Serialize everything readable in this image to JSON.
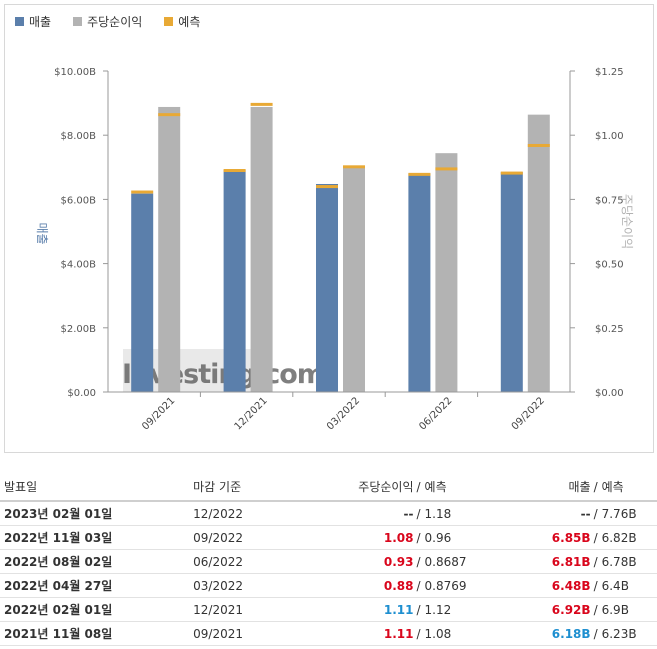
{
  "legend": [
    {
      "label": "매출",
      "color": "#5b7fab"
    },
    {
      "label": "주당순이익",
      "color": "#b3b3b3"
    },
    {
      "label": "예측",
      "color": "#e8a935"
    }
  ],
  "chart_data": {
    "type": "bar",
    "categories": [
      "09/2021",
      "12/2021",
      "03/2022",
      "06/2022",
      "09/2022"
    ],
    "series": [
      {
        "name": "매출",
        "axis": "left",
        "values": [
          6.18,
          6.92,
          6.48,
          6.81,
          6.85
        ],
        "forecast": [
          6.23,
          6.9,
          6.4,
          6.78,
          6.82
        ]
      },
      {
        "name": "주당순이익",
        "axis": "right",
        "values": [
          1.11,
          1.11,
          0.88,
          0.93,
          1.08
        ],
        "forecast": [
          1.08,
          1.12,
          0.8769,
          0.8687,
          0.96
        ]
      }
    ],
    "ylabel": "매출",
    "y2label": "주당순이익",
    "ylim": [
      0,
      10
    ],
    "y2lim": [
      0,
      1.25
    ],
    "yticks": [
      "$0.00",
      "$2.00B",
      "$4.00B",
      "$6.00B",
      "$8.00B",
      "$10.00B"
    ],
    "y2ticks": [
      "$0.00",
      "$0.25",
      "$0.50",
      "$0.75",
      "$1.00",
      "$1.25"
    ],
    "watermark": "Investing.com"
  },
  "table": {
    "headers": {
      "date": "발표일",
      "period": "마감 기준",
      "eps": "주당순이익",
      "eps_forecast": "예측",
      "revenue": "매출",
      "revenue_forecast": "예측",
      "slash": "/"
    },
    "rows": [
      {
        "date": "2023년 02월 01일",
        "period": "12/2022",
        "eps": "--",
        "eps_class": "neu",
        "eps_forecast": "1.18",
        "revenue": "--",
        "revenue_class": "neu",
        "revenue_forecast": "7.76B"
      },
      {
        "date": "2022년 11월 03일",
        "period": "09/2022",
        "eps": "1.08",
        "eps_class": "neg",
        "eps_forecast": "0.96",
        "revenue": "6.85B",
        "revenue_class": "neg",
        "revenue_forecast": "6.82B"
      },
      {
        "date": "2022년 08월 02일",
        "period": "06/2022",
        "eps": "0.93",
        "eps_class": "neg",
        "eps_forecast": "0.8687",
        "revenue": "6.81B",
        "revenue_class": "neg",
        "revenue_forecast": "6.78B"
      },
      {
        "date": "2022년 04월 27일",
        "period": "03/2022",
        "eps": "0.88",
        "eps_class": "neg",
        "eps_forecast": "0.8769",
        "revenue": "6.48B",
        "revenue_class": "neg",
        "revenue_forecast": "6.4B"
      },
      {
        "date": "2022년 02월 01일",
        "period": "12/2021",
        "eps": "1.11",
        "eps_class": "pos",
        "eps_forecast": "1.12",
        "revenue": "6.92B",
        "revenue_class": "neg",
        "revenue_forecast": "6.9B"
      },
      {
        "date": "2021년 11월 08일",
        "period": "09/2021",
        "eps": "1.11",
        "eps_class": "neg",
        "eps_forecast": "1.08",
        "revenue": "6.18B",
        "revenue_class": "pos",
        "revenue_forecast": "6.23B"
      }
    ]
  }
}
